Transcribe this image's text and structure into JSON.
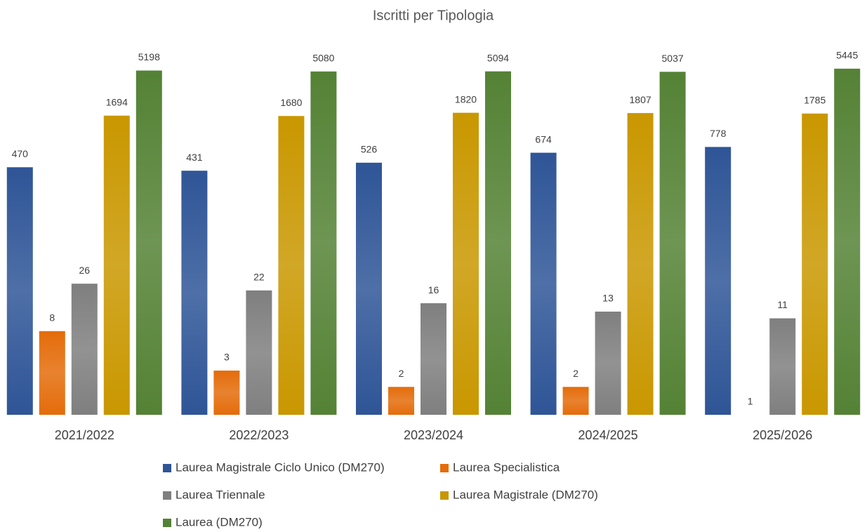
{
  "chart_data": {
    "type": "bar",
    "title": "Iscritti per Tipologia",
    "categories": [
      "2021/2022",
      "2022/2023",
      "2023/2024",
      "2024/2025",
      "2025/2026"
    ],
    "log_scale": true,
    "ylim": [
      1,
      10000
    ],
    "legend": "bottom",
    "series": [
      {
        "name": "Laurea Magistrale Ciclo Unico (DM270)",
        "color": "#2f5597",
        "values": [
          470,
          431,
          526,
          674,
          778
        ]
      },
      {
        "name": "Laurea Specialistica",
        "color": "#e46c0a",
        "values": [
          8,
          3,
          2,
          2,
          1
        ]
      },
      {
        "name": "Laurea Triennale",
        "color": "#7f7f7f",
        "values": [
          26,
          22,
          16,
          13,
          11
        ]
      },
      {
        "name": "Laurea Magistrale (DM270)",
        "color": "#c99700",
        "values": [
          1694,
          1680,
          1820,
          1807,
          1785
        ]
      },
      {
        "name": "Laurea (DM270)",
        "color": "#548235",
        "values": [
          5198,
          5080,
          5094,
          5037,
          5445
        ]
      }
    ]
  }
}
